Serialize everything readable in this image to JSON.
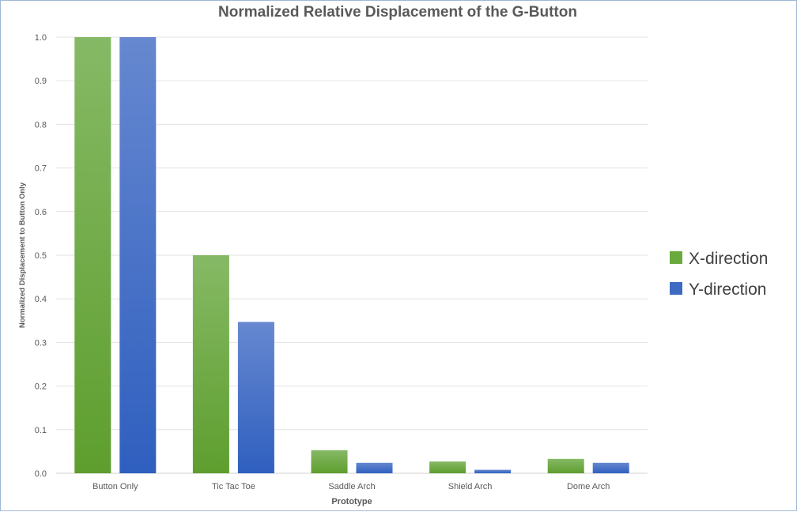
{
  "chart_data": {
    "type": "bar",
    "title": "Normalized Relative Displacement of the G-Button",
    "xlabel": "Prototype",
    "ylabel": "Normalized Displacement to Button Only",
    "categories": [
      "Button Only",
      "Tic Tac Toe",
      "Saddle Arch",
      "Shield Arch",
      "Dome Arch"
    ],
    "series": [
      {
        "name": "X-direction",
        "values": [
          1.0,
          0.5,
          0.053,
          0.027,
          0.033
        ],
        "color": "#6aaa3c"
      },
      {
        "name": "Y-direction",
        "values": [
          1.0,
          0.347,
          0.024,
          0.008,
          0.024
        ],
        "color": "#3d6bc4"
      }
    ],
    "ylim": [
      0,
      1.0
    ],
    "yticks": [
      "0.0",
      "0.1",
      "0.2",
      "0.3",
      "0.4",
      "0.5",
      "0.6",
      "0.7",
      "0.8",
      "0.9",
      "1.0"
    ],
    "grid": true,
    "legend_position": "right"
  }
}
